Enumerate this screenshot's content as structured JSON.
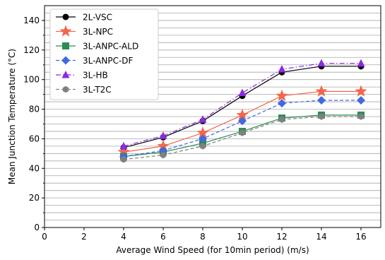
{
  "chart_data": {
    "type": "line",
    "xlabel": "Average Wind Speed (for 10min period) (m/s)",
    "ylabel": "Mean Junction Temperature (°C)",
    "xlim": [
      0,
      17
    ],
    "ylim": [
      0,
      150
    ],
    "x_ticks": [
      "0",
      "2",
      "4",
      "6",
      "8",
      "10",
      "12",
      "14",
      "16"
    ],
    "y_ticks": [
      "0",
      "20",
      "40",
      "60",
      "80",
      "100",
      "120",
      "140"
    ],
    "grid": "horizontal",
    "legend_position": "top-left",
    "x": [
      4,
      6,
      8,
      10,
      12,
      14,
      16
    ],
    "series": [
      {
        "name": "2L-VSC",
        "color": "#000000",
        "marker": "circle",
        "dash": "solid",
        "values": [
          54,
          61,
          72,
          89,
          105,
          109,
          109
        ]
      },
      {
        "name": "3L-NPC",
        "color": "#f2674a",
        "marker": "star",
        "dash": "solid",
        "values": [
          51,
          55,
          64,
          76,
          89,
          92,
          92
        ]
      },
      {
        "name": "3L-ANPC-ALD",
        "color": "#2e8b57",
        "marker": "square",
        "dash": "solid",
        "values": [
          48,
          51,
          57,
          65,
          74,
          76,
          76
        ]
      },
      {
        "name": "3L-ANPC-DF",
        "color": "#4169e1",
        "marker": "diamond",
        "dash": "dashed",
        "values": [
          48,
          52,
          60,
          72,
          84,
          86,
          86
        ]
      },
      {
        "name": "3L-HB",
        "color": "#8a2be2",
        "marker": "triangle",
        "dash": "dashdot",
        "values": [
          55,
          62,
          73,
          91,
          107,
          111,
          111
        ]
      },
      {
        "name": "3L-T2C",
        "color": "#808080",
        "marker": "hexagon",
        "dash": "dashed",
        "values": [
          46,
          49,
          55,
          64,
          73,
          75,
          75
        ]
      }
    ]
  }
}
